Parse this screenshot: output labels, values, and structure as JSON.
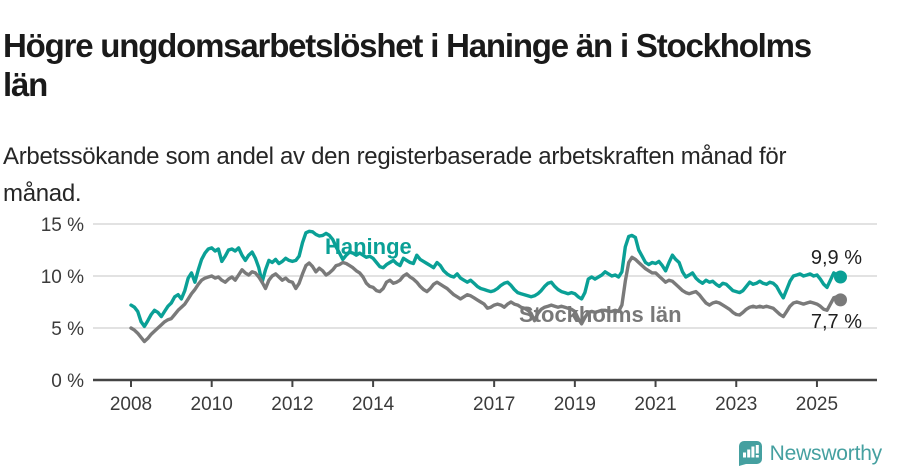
{
  "title_lines": [
    "Högre ungdomsarbetslöshet i Haninge än i Stockholms",
    "län"
  ],
  "subtitle_lines": [
    "Arbetssökande som andel av den registerbaserade arbetskraften månad för",
    "månad."
  ],
  "branding": {
    "logo_text": "Newsworthy",
    "logo_color": "#45a0a0",
    "logo_icon": "bar-chart-speech-bubble-icon"
  },
  "chart_data": {
    "type": "line",
    "title": "Högre ungdomsarbetslöshet i Haninge än i Stockholms län",
    "subtitle": "Arbetssökande som andel av den registerbaserade arbetskraften månad för månad.",
    "x_start_year": 2008,
    "x_step_months": 1,
    "x_end": "2025-08",
    "ylim": [
      0,
      15.5
    ],
    "grid": true,
    "legend": "inline-labels",
    "colors": {
      "haninge": "#0aa096",
      "stockholms_lan": "#7a7a7a",
      "gridline": "#d9d9d9",
      "axis": "#444444"
    },
    "y_ticks": [
      {
        "value": 15,
        "label": "15 %"
      },
      {
        "value": 10,
        "label": "10 %"
      },
      {
        "value": 5,
        "label": "5 %"
      },
      {
        "value": 0,
        "label": "0 %"
      }
    ],
    "x_ticks": [
      {
        "value": 2008,
        "label": "2008"
      },
      {
        "value": 2010,
        "label": "2010"
      },
      {
        "value": 2012,
        "label": "2012"
      },
      {
        "value": 2014,
        "label": "2014"
      },
      {
        "value": 2017,
        "label": "2017"
      },
      {
        "value": 2019,
        "label": "2019"
      },
      {
        "value": 2021,
        "label": "2021"
      },
      {
        "value": 2023,
        "label": "2023"
      },
      {
        "value": 2025,
        "label": "2025"
      }
    ],
    "series": [
      {
        "name": "Haninge",
        "color": "#0aa096",
        "end_label": "9,9 %",
        "end_value": 9.9,
        "values": [
          7.2,
          7.0,
          6.6,
          5.6,
          5.15,
          5.7,
          6.3,
          6.7,
          6.5,
          6.1,
          6.6,
          7.1,
          7.4,
          8.0,
          8.2,
          7.8,
          8.6,
          9.8,
          10.3,
          9.4,
          10.6,
          11.6,
          12.2,
          12.6,
          12.7,
          12.4,
          12.6,
          11.4,
          11.9,
          12.5,
          12.6,
          12.4,
          12.7,
          12.0,
          11.5,
          12.0,
          12.3,
          11.7,
          10.8,
          9.4,
          10.6,
          11.5,
          11.3,
          11.6,
          11.2,
          11.4,
          11.7,
          11.5,
          11.4,
          11.5,
          11.9,
          13.2,
          14.15,
          14.3,
          14.25,
          14.0,
          13.85,
          13.9,
          14.1,
          13.9,
          13.5,
          12.8,
          12.2,
          11.6,
          12.0,
          12.3,
          12.2,
          12.0,
          12.2,
          12.0,
          11.8,
          11.9,
          11.7,
          11.3,
          10.9,
          10.8,
          11.1,
          11.3,
          11.5,
          11.2,
          11.0,
          11.7,
          11.5,
          11.3,
          11.2,
          12.0,
          11.6,
          11.4,
          11.2,
          11.0,
          10.8,
          11.3,
          11.0,
          10.5,
          10.2,
          10.0,
          9.9,
          10.2,
          9.8,
          9.6,
          9.4,
          9.6,
          9.3,
          9.0,
          8.8,
          8.7,
          8.6,
          8.5,
          8.6,
          8.8,
          9.1,
          9.3,
          9.4,
          9.1,
          8.7,
          8.4,
          8.3,
          8.2,
          8.1,
          8.0,
          8.1,
          8.3,
          8.6,
          9.0,
          9.3,
          9.4,
          9.0,
          8.7,
          8.5,
          8.4,
          8.3,
          8.4,
          8.3,
          8.0,
          7.8,
          8.4,
          9.7,
          9.9,
          9.7,
          9.9,
          10.1,
          10.4,
          10.2,
          10.0,
          10.1,
          9.9,
          10.4,
          12.8,
          13.8,
          13.9,
          13.7,
          12.5,
          11.9,
          11.3,
          11.1,
          11.3,
          11.2,
          11.4,
          11.0,
          10.5,
          11.3,
          12.0,
          11.6,
          11.3,
          10.4,
          9.9,
          10.1,
          10.3,
          9.8,
          9.5,
          9.3,
          9.6,
          9.4,
          9.5,
          9.2,
          9.0,
          9.3,
          9.2,
          8.9,
          8.6,
          8.5,
          8.4,
          8.6,
          9.0,
          9.4,
          9.2,
          9.3,
          9.5,
          9.3,
          9.2,
          9.4,
          9.3,
          9.0,
          8.4,
          7.9,
          8.7,
          9.5,
          10.0,
          10.1,
          10.2,
          10.0,
          10.1,
          10.2,
          10.0,
          10.1,
          9.7,
          9.2,
          8.9,
          9.6,
          10.3,
          10.1,
          9.9
        ]
      },
      {
        "name": "Stockholms län",
        "color": "#7a7a7a",
        "end_label": "7,7 %",
        "end_value": 7.7,
        "values": [
          5.0,
          4.8,
          4.5,
          4.1,
          3.7,
          4.0,
          4.4,
          4.7,
          5.0,
          5.3,
          5.6,
          5.8,
          5.9,
          6.3,
          6.7,
          7.0,
          7.3,
          7.8,
          8.3,
          8.7,
          9.2,
          9.6,
          9.8,
          9.9,
          10.0,
          9.8,
          9.9,
          9.6,
          9.4,
          9.7,
          9.9,
          9.6,
          10.1,
          10.6,
          10.3,
          10.1,
          10.4,
          10.3,
          9.9,
          9.4,
          8.8,
          9.6,
          10.0,
          10.2,
          9.9,
          9.6,
          9.8,
          9.5,
          9.4,
          8.8,
          9.3,
          10.2,
          11.0,
          11.25,
          10.9,
          10.4,
          10.75,
          10.5,
          10.1,
          10.3,
          10.6,
          11.0,
          11.1,
          11.3,
          11.2,
          11.0,
          10.8,
          10.5,
          10.3,
          9.9,
          9.3,
          9.0,
          8.9,
          8.6,
          8.5,
          8.8,
          9.4,
          9.6,
          9.3,
          9.4,
          9.6,
          10.0,
          10.2,
          9.9,
          9.7,
          9.4,
          9.0,
          8.7,
          8.5,
          8.8,
          9.2,
          9.4,
          9.2,
          9.0,
          8.8,
          8.5,
          8.2,
          8.0,
          7.8,
          8.0,
          8.2,
          8.1,
          7.9,
          7.7,
          7.5,
          7.3,
          6.9,
          7.0,
          7.2,
          7.3,
          7.2,
          7.0,
          7.3,
          7.5,
          7.3,
          7.2,
          7.0,
          6.9,
          6.7,
          6.4,
          5.7,
          6.4,
          6.8,
          7.0,
          7.1,
          7.2,
          7.1,
          7.0,
          7.1,
          7.0,
          6.9,
          6.8,
          6.6,
          5.9,
          5.4,
          6.0,
          6.5,
          6.6,
          6.5,
          6.6,
          6.7,
          6.7,
          6.6,
          6.6,
          6.7,
          6.6,
          7.2,
          9.5,
          11.3,
          11.8,
          11.6,
          11.3,
          11.0,
          10.7,
          10.5,
          10.3,
          10.3,
          10.0,
          9.7,
          9.4,
          9.6,
          9.5,
          9.2,
          8.9,
          8.6,
          8.4,
          8.3,
          8.4,
          8.5,
          8.2,
          7.8,
          7.4,
          7.2,
          7.4,
          7.5,
          7.4,
          7.2,
          7.0,
          6.8,
          6.5,
          6.3,
          6.25,
          6.5,
          6.8,
          7.0,
          7.1,
          7.0,
          7.1,
          7.0,
          7.1,
          7.0,
          6.9,
          6.6,
          6.3,
          6.1,
          6.6,
          7.1,
          7.4,
          7.5,
          7.4,
          7.3,
          7.4,
          7.5,
          7.4,
          7.3,
          7.1,
          6.8,
          6.7,
          7.3,
          7.9,
          8.0,
          7.7
        ]
      }
    ]
  }
}
